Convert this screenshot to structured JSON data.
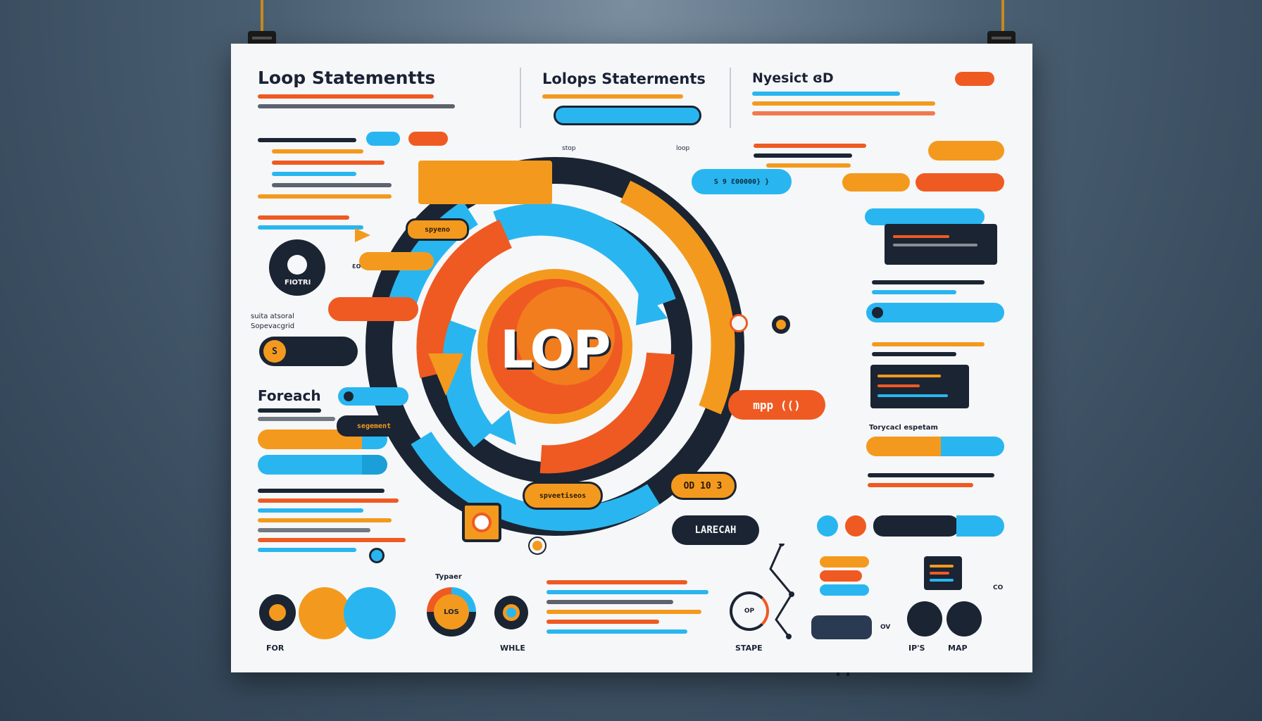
{
  "poster": {
    "title_left": "Loop Statementts",
    "title_center": "Lolops Staterments",
    "title_right": "Nyesict ɞD",
    "foreach_heading": "Foreach",
    "side_note_top": "suita atsoral",
    "side_note_bottom": "Sopevacgrid",
    "right_caption": "Torycacl espetam",
    "typer_caption": "Typaer",
    "center_word": "LOP",
    "loop_labels": {
      "top_tag": "spyeno",
      "right_bubble": "mpp (()",
      "right_top_pill": "S 9 Ɛ00000} }",
      "bottom_pill": "OD 10 3",
      "bottom_left_pill": "spveetiseos",
      "lower_pill": "LARECAH",
      "left_pill": "segement",
      "tiny_left": "stop",
      "tiny_right": "loop"
    },
    "bottom_labels": {
      "for": "FOR",
      "while": "WHLE",
      "los": "LOS",
      "stape": "STAPE",
      "op": "OP",
      "ips": "IP'S",
      "map": "MAP",
      "ov": "OV",
      "co": "CO"
    },
    "left_dial_text": "FIOTRI",
    "left_dial_value": "S",
    "left_dial_side": "ƐOOO",
    "colors": {
      "orange": "#f39a1e",
      "deep_orange": "#ef5a22",
      "blue": "#29b6f0",
      "navy": "#1b2433",
      "paper": "#f6f7f8"
    }
  }
}
